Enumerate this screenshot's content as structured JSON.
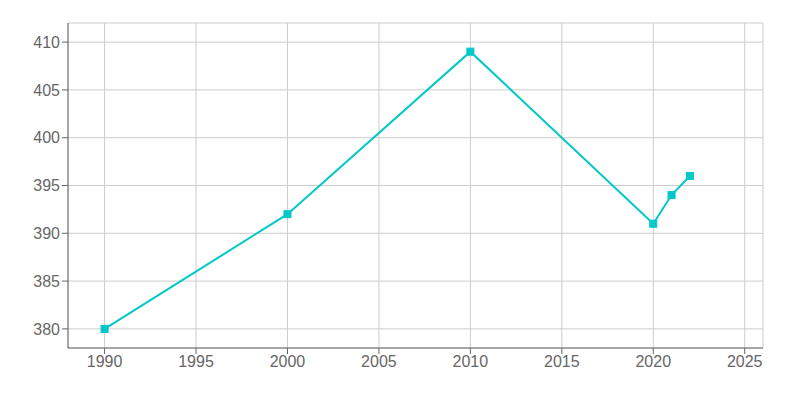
{
  "chart_data": {
    "type": "line",
    "x": [
      1990,
      2000,
      2010,
      2020,
      2021,
      2022
    ],
    "values": [
      380,
      392,
      409,
      391,
      394,
      396
    ],
    "color": "#00C8C8",
    "marker": "square",
    "xlim": [
      1988,
      2026
    ],
    "ylim": [
      378,
      412
    ],
    "xticks": [
      1990,
      1995,
      2000,
      2005,
      2010,
      2015,
      2020,
      2025
    ],
    "yticks": [
      380,
      385,
      390,
      395,
      400,
      405,
      410
    ],
    "grid": true
  }
}
